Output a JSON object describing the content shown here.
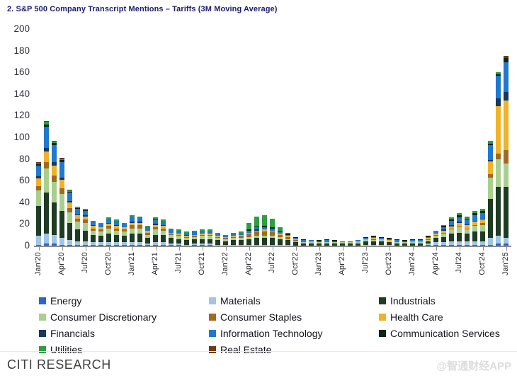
{
  "title": "2. S&P 500 Company Transcript Mentions – Tariffs (3M Moving Average)",
  "footer": {
    "brand": "CITI RESEARCH",
    "watermark": "@智通财经APP"
  },
  "chart_data": {
    "type": "bar",
    "subtype": "stacked",
    "n_bars": 61,
    "x_range": "Jan'20 to Jan'25, monthly",
    "x_tick_labels": [
      "Jan'20",
      "Apr'20",
      "Jul'20",
      "Oct'20",
      "Jan'21",
      "Apr'21",
      "Jul'21",
      "Oct'21",
      "Jan'22",
      "Apr'22",
      "Jul'22",
      "Oct'22",
      "Jan'23",
      "Apr'23",
      "Jul'23",
      "Oct'23",
      "Jan'24",
      "Apr'24",
      "Jul'24",
      "Oct'24",
      "Jan'25"
    ],
    "tick_every": 3,
    "ylim": [
      0,
      200
    ],
    "y_ticks": [
      0,
      20,
      40,
      60,
      80,
      100,
      120,
      140,
      160,
      180,
      200
    ],
    "grid": "off",
    "legend_position": "bottom, 3 columns",
    "legend_display_order": [
      0,
      3,
      6,
      9,
      1,
      4,
      7,
      10,
      2,
      5,
      8
    ],
    "series": [
      {
        "name": "Energy",
        "color": "#2a66c8",
        "values": [
          1,
          2,
          2,
          1,
          1,
          1,
          1,
          1,
          1,
          1,
          1,
          1,
          1,
          1,
          1,
          1,
          1,
          1,
          1,
          0,
          1,
          1,
          1,
          0,
          0,
          0,
          0,
          0,
          0,
          0,
          0,
          0,
          0,
          0,
          0,
          0,
          0,
          0,
          0,
          0,
          0,
          0,
          0,
          0,
          0,
          0,
          0,
          0,
          0,
          0,
          1,
          1,
          1,
          1,
          1,
          1,
          1,
          1,
          1,
          2,
          2
        ]
      },
      {
        "name": "Materials",
        "color": "#9fc5e8",
        "values": [
          8,
          9,
          8,
          6,
          4,
          3,
          3,
          2,
          2,
          2,
          2,
          2,
          2,
          2,
          1,
          2,
          2,
          1,
          1,
          1,
          1,
          1,
          1,
          1,
          1,
          1,
          1,
          1,
          1,
          1,
          1,
          1,
          1,
          0,
          0,
          0,
          0,
          0,
          0,
          0,
          0,
          0,
          1,
          1,
          1,
          1,
          0,
          0,
          0,
          0,
          1,
          2,
          2,
          3,
          3,
          3,
          3,
          3,
          6,
          7,
          5
        ]
      },
      {
        "name": "Industrials",
        "color": "#1e3b23",
        "values": [
          28,
          38,
          30,
          25,
          16,
          11,
          10,
          7,
          6,
          8,
          7,
          6,
          8,
          8,
          5,
          7,
          7,
          5,
          4,
          4,
          4,
          4,
          4,
          4,
          3,
          4,
          4,
          5,
          6,
          6,
          6,
          5,
          4,
          3,
          2,
          2,
          2,
          2,
          2,
          2,
          2,
          2,
          3,
          3,
          3,
          2,
          2,
          2,
          2,
          2,
          2,
          4,
          5,
          7,
          8,
          7,
          9,
          9,
          36,
          45,
          47
        ]
      },
      {
        "name": "Consumer Discretionary",
        "color": "#a8d08d",
        "values": [
          14,
          22,
          19,
          16,
          10,
          7,
          7,
          4,
          4,
          5,
          4,
          4,
          5,
          5,
          3,
          5,
          4,
          3,
          3,
          2,
          2,
          3,
          3,
          2,
          2,
          2,
          2,
          2,
          2,
          2,
          2,
          2,
          1,
          1,
          1,
          1,
          1,
          1,
          1,
          1,
          1,
          1,
          1,
          1,
          1,
          1,
          1,
          1,
          1,
          1,
          1,
          2,
          3,
          4,
          5,
          4,
          5,
          6,
          20,
          26,
          22
        ]
      },
      {
        "name": "Consumer Staples",
        "color": "#a26a1e",
        "values": [
          4,
          6,
          6,
          5,
          4,
          3,
          3,
          2,
          2,
          2,
          2,
          2,
          3,
          3,
          2,
          2,
          2,
          1,
          1,
          1,
          1,
          1,
          1,
          1,
          1,
          1,
          2,
          3,
          4,
          4,
          4,
          2,
          2,
          1,
          1,
          0,
          0,
          1,
          0,
          0,
          0,
          0,
          0,
          1,
          0,
          0,
          1,
          0,
          0,
          0,
          1,
          1,
          1,
          1,
          1,
          1,
          1,
          2,
          3,
          5,
          12
        ]
      },
      {
        "name": "Health Care",
        "color": "#f1b229",
        "values": [
          7,
          10,
          9,
          8,
          5,
          3,
          3,
          2,
          2,
          2,
          2,
          2,
          2,
          2,
          2,
          2,
          2,
          1,
          1,
          1,
          1,
          1,
          1,
          1,
          1,
          1,
          1,
          1,
          1,
          2,
          1,
          1,
          1,
          1,
          0,
          1,
          0,
          0,
          0,
          0,
          0,
          1,
          1,
          1,
          1,
          1,
          0,
          0,
          1,
          1,
          1,
          1,
          2,
          2,
          3,
          3,
          3,
          3,
          12,
          44,
          46
        ]
      },
      {
        "name": "Financials",
        "color": "#17375e",
        "values": [
          2,
          3,
          3,
          2,
          1,
          1,
          1,
          1,
          0,
          1,
          1,
          0,
          1,
          1,
          0,
          1,
          1,
          0,
          0,
          1,
          0,
          0,
          0,
          0,
          0,
          0,
          0,
          0,
          1,
          0,
          0,
          0,
          0,
          0,
          0,
          0,
          0,
          0,
          0,
          0,
          0,
          0,
          0,
          0,
          0,
          0,
          0,
          0,
          0,
          0,
          0,
          0,
          1,
          1,
          1,
          1,
          1,
          1,
          1,
          7,
          8
        ]
      },
      {
        "name": "Information Technology",
        "color": "#1f78d1",
        "values": [
          10,
          20,
          16,
          14,
          8,
          5,
          4,
          3,
          3,
          4,
          4,
          3,
          5,
          4,
          3,
          4,
          4,
          3,
          3,
          2,
          3,
          3,
          3,
          2,
          1,
          2,
          2,
          2,
          2,
          2,
          2,
          2,
          1,
          1,
          1,
          1,
          1,
          1,
          1,
          1,
          1,
          1,
          1,
          1,
          1,
          1,
          1,
          1,
          1,
          1,
          1,
          2,
          2,
          4,
          4,
          4,
          5,
          5,
          14,
          21,
          27
        ]
      },
      {
        "name": "Communication Services",
        "color": "#102517",
        "values": [
          1,
          2,
          2,
          2,
          1,
          1,
          1,
          0,
          0,
          0,
          0,
          0,
          0,
          0,
          0,
          1,
          0,
          0,
          0,
          0,
          0,
          0,
          0,
          0,
          0,
          0,
          0,
          1,
          1,
          1,
          1,
          1,
          1,
          1,
          1,
          0,
          1,
          1,
          1,
          0,
          0,
          0,
          1,
          1,
          1,
          1,
          1,
          1,
          1,
          1,
          1,
          0,
          1,
          1,
          2,
          1,
          2,
          2,
          1,
          1,
          4
        ]
      },
      {
        "name": "Utilities",
        "color": "#2f9e41",
        "values": [
          1,
          2,
          1,
          1,
          1,
          1,
          1,
          1,
          1,
          1,
          1,
          1,
          1,
          1,
          1,
          1,
          1,
          1,
          1,
          1,
          1,
          1,
          1,
          1,
          1,
          1,
          1,
          6,
          9,
          10,
          8,
          3,
          1,
          0,
          0,
          0,
          0,
          0,
          0,
          0,
          0,
          0,
          0,
          0,
          0,
          0,
          0,
          0,
          0,
          0,
          0,
          1,
          1,
          2,
          2,
          2,
          2,
          2,
          3,
          2,
          0
        ]
      },
      {
        "name": "Real Estate",
        "color": "#6e3b14",
        "values": [
          1,
          1,
          1,
          1,
          1,
          0,
          0,
          0,
          0,
          0,
          0,
          0,
          0,
          0,
          0,
          0,
          0,
          0,
          0,
          0,
          0,
          0,
          0,
          0,
          0,
          0,
          0,
          0,
          0,
          0,
          0,
          0,
          0,
          0,
          0,
          0,
          0,
          0,
          0,
          0,
          0,
          0,
          0,
          0,
          0,
          0,
          0,
          0,
          0,
          0,
          0,
          0,
          0,
          0,
          0,
          0,
          0,
          0,
          0,
          0,
          2
        ]
      }
    ]
  }
}
